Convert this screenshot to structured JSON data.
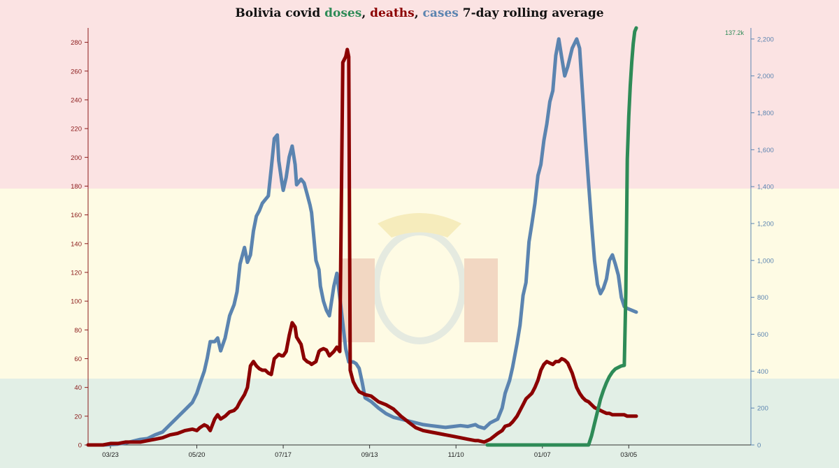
{
  "chart_data": {
    "type": "line",
    "title": {
      "prefix": "Bolivia covid ",
      "doses": "doses",
      "sep1": ", ",
      "deaths": "deaths",
      "sep2": ", ",
      "cases": "cases",
      "suffix": " 7-day rolling average"
    },
    "x_domain": [
      0,
      445
    ],
    "x_ticks": [
      {
        "label": "03/23",
        "day": 15
      },
      {
        "label": "05/20",
        "day": 73
      },
      {
        "label": "07/17",
        "day": 131
      },
      {
        "label": "09/13",
        "day": 189
      },
      {
        "label": "11/10",
        "day": 247
      },
      {
        "label": "01/07",
        "day": 305
      },
      {
        "label": "03/05",
        "day": 363
      }
    ],
    "y_left": {
      "series": "deaths",
      "range": [
        0,
        290
      ],
      "ticks": [
        0,
        20,
        40,
        60,
        80,
        100,
        120,
        140,
        160,
        180,
        200,
        220,
        240,
        260,
        280
      ]
    },
    "y_right": {
      "series": "cases",
      "range": [
        0,
        2260
      ],
      "ticks": [
        0,
        200,
        400,
        600,
        800,
        1000,
        1200,
        1400,
        1600,
        1800,
        2000,
        2200
      ],
      "tick_labels": [
        "0",
        "200",
        "400",
        "600",
        "800",
        "1,000",
        "1,200",
        "1,400",
        "1,600",
        "1,800",
        "2,000",
        "2,200"
      ]
    },
    "doses_max_label": "137.2k",
    "doses_max": 137200,
    "series": [
      {
        "name": "cases",
        "color": "#5b84b0",
        "axis": "right",
        "points": [
          [
            0,
            0
          ],
          [
            10,
            0
          ],
          [
            15,
            2
          ],
          [
            20,
            5
          ],
          [
            25,
            10
          ],
          [
            30,
            20
          ],
          [
            35,
            30
          ],
          [
            40,
            35
          ],
          [
            45,
            55
          ],
          [
            50,
            70
          ],
          [
            55,
            110
          ],
          [
            60,
            150
          ],
          [
            65,
            190
          ],
          [
            70,
            230
          ],
          [
            73,
            280
          ],
          [
            75,
            330
          ],
          [
            78,
            400
          ],
          [
            80,
            470
          ],
          [
            82,
            560
          ],
          [
            85,
            560
          ],
          [
            87,
            580
          ],
          [
            89,
            510
          ],
          [
            92,
            580
          ],
          [
            95,
            700
          ],
          [
            98,
            760
          ],
          [
            100,
            830
          ],
          [
            102,
            980
          ],
          [
            105,
            1070
          ],
          [
            107,
            990
          ],
          [
            109,
            1030
          ],
          [
            111,
            1160
          ],
          [
            113,
            1240
          ],
          [
            115,
            1270
          ],
          [
            117,
            1310
          ],
          [
            119,
            1330
          ],
          [
            121,
            1350
          ],
          [
            123,
            1500
          ],
          [
            125,
            1660
          ],
          [
            127,
            1680
          ],
          [
            128,
            1540
          ],
          [
            130,
            1430
          ],
          [
            131,
            1380
          ],
          [
            133,
            1450
          ],
          [
            135,
            1560
          ],
          [
            137,
            1620
          ],
          [
            139,
            1520
          ],
          [
            140,
            1410
          ],
          [
            143,
            1440
          ],
          [
            145,
            1420
          ],
          [
            147,
            1360
          ],
          [
            149,
            1300
          ],
          [
            150,
            1260
          ],
          [
            153,
            1000
          ],
          [
            155,
            950
          ],
          [
            156,
            860
          ],
          [
            158,
            780
          ],
          [
            160,
            730
          ],
          [
            162,
            700
          ],
          [
            165,
            860
          ],
          [
            167,
            930
          ],
          [
            169,
            800
          ],
          [
            171,
            660
          ],
          [
            173,
            520
          ],
          [
            175,
            450
          ],
          [
            178,
            450
          ],
          [
            180,
            440
          ],
          [
            182,
            415
          ],
          [
            184,
            340
          ],
          [
            186,
            255
          ],
          [
            190,
            235
          ],
          [
            195,
            200
          ],
          [
            200,
            170
          ],
          [
            205,
            150
          ],
          [
            210,
            140
          ],
          [
            215,
            130
          ],
          [
            220,
            120
          ],
          [
            225,
            110
          ],
          [
            230,
            105
          ],
          [
            235,
            100
          ],
          [
            240,
            95
          ],
          [
            245,
            100
          ],
          [
            250,
            105
          ],
          [
            255,
            100
          ],
          [
            260,
            110
          ],
          [
            262,
            100
          ],
          [
            266,
            90
          ],
          [
            270,
            120
          ],
          [
            275,
            140
          ],
          [
            278,
            200
          ],
          [
            280,
            280
          ],
          [
            283,
            350
          ],
          [
            285,
            420
          ],
          [
            288,
            550
          ],
          [
            290,
            650
          ],
          [
            292,
            810
          ],
          [
            294,
            880
          ],
          [
            296,
            1100
          ],
          [
            298,
            1200
          ],
          [
            300,
            1310
          ],
          [
            302,
            1460
          ],
          [
            304,
            1520
          ],
          [
            306,
            1650
          ],
          [
            308,
            1740
          ],
          [
            310,
            1860
          ],
          [
            312,
            1920
          ],
          [
            314,
            2110
          ],
          [
            316,
            2200
          ],
          [
            318,
            2100
          ],
          [
            320,
            2000
          ],
          [
            322,
            2050
          ],
          [
            325,
            2150
          ],
          [
            328,
            2200
          ],
          [
            330,
            2150
          ],
          [
            332,
            1900
          ],
          [
            334,
            1650
          ],
          [
            336,
            1420
          ],
          [
            338,
            1200
          ],
          [
            340,
            1000
          ],
          [
            342,
            870
          ],
          [
            344,
            820
          ],
          [
            346,
            850
          ],
          [
            348,
            900
          ],
          [
            350,
            1000
          ],
          [
            352,
            1030
          ],
          [
            354,
            980
          ],
          [
            356,
            920
          ],
          [
            358,
            800
          ],
          [
            360,
            750
          ],
          [
            362,
            740
          ],
          [
            365,
            730
          ],
          [
            368,
            720
          ]
        ]
      },
      {
        "name": "deaths",
        "color": "#8b0000",
        "axis": "left",
        "points": [
          [
            0,
            0
          ],
          [
            10,
            0
          ],
          [
            15,
            1
          ],
          [
            20,
            1
          ],
          [
            25,
            2
          ],
          [
            30,
            2
          ],
          [
            35,
            2
          ],
          [
            40,
            3
          ],
          [
            45,
            4
          ],
          [
            50,
            5
          ],
          [
            55,
            7
          ],
          [
            60,
            8
          ],
          [
            65,
            10
          ],
          [
            70,
            11
          ],
          [
            73,
            10
          ],
          [
            75,
            12
          ],
          [
            78,
            14
          ],
          [
            80,
            13
          ],
          [
            82,
            10
          ],
          [
            85,
            18
          ],
          [
            87,
            21
          ],
          [
            89,
            18
          ],
          [
            92,
            20
          ],
          [
            95,
            23
          ],
          [
            98,
            24
          ],
          [
            100,
            26
          ],
          [
            102,
            30
          ],
          [
            105,
            35
          ],
          [
            107,
            40
          ],
          [
            109,
            55
          ],
          [
            111,
            58
          ],
          [
            113,
            55
          ],
          [
            115,
            53
          ],
          [
            117,
            52
          ],
          [
            119,
            52
          ],
          [
            121,
            50
          ],
          [
            123,
            49
          ],
          [
            125,
            60
          ],
          [
            127,
            62
          ],
          [
            128,
            63
          ],
          [
            130,
            62
          ],
          [
            131,
            62
          ],
          [
            133,
            65
          ],
          [
            135,
            76
          ],
          [
            137,
            85
          ],
          [
            139,
            82
          ],
          [
            140,
            75
          ],
          [
            143,
            70
          ],
          [
            145,
            60
          ],
          [
            147,
            58
          ],
          [
            149,
            57
          ],
          [
            150,
            56
          ],
          [
            153,
            58
          ],
          [
            155,
            65
          ],
          [
            156,
            66
          ],
          [
            158,
            67
          ],
          [
            160,
            66
          ],
          [
            162,
            62
          ],
          [
            165,
            65
          ],
          [
            167,
            68
          ],
          [
            169,
            65
          ],
          [
            171,
            266
          ],
          [
            173,
            270
          ],
          [
            174,
            275
          ],
          [
            175,
            270
          ],
          [
            176,
            52
          ],
          [
            178,
            44
          ],
          [
            180,
            40
          ],
          [
            182,
            37
          ],
          [
            184,
            36
          ],
          [
            186,
            35
          ],
          [
            190,
            34
          ],
          [
            195,
            30
          ],
          [
            200,
            28
          ],
          [
            205,
            25
          ],
          [
            210,
            20
          ],
          [
            215,
            16
          ],
          [
            220,
            12
          ],
          [
            225,
            10
          ],
          [
            230,
            9
          ],
          [
            235,
            8
          ],
          [
            240,
            7
          ],
          [
            245,
            6
          ],
          [
            250,
            5
          ],
          [
            255,
            4
          ],
          [
            260,
            3
          ],
          [
            262,
            3
          ],
          [
            266,
            2
          ],
          [
            270,
            4
          ],
          [
            275,
            8
          ],
          [
            278,
            10
          ],
          [
            280,
            13
          ],
          [
            283,
            14
          ],
          [
            285,
            16
          ],
          [
            288,
            20
          ],
          [
            290,
            24
          ],
          [
            292,
            28
          ],
          [
            294,
            32
          ],
          [
            296,
            34
          ],
          [
            298,
            36
          ],
          [
            300,
            40
          ],
          [
            302,
            45
          ],
          [
            304,
            52
          ],
          [
            306,
            56
          ],
          [
            308,
            58
          ],
          [
            310,
            57
          ],
          [
            312,
            56
          ],
          [
            314,
            58
          ],
          [
            316,
            58
          ],
          [
            318,
            60
          ],
          [
            320,
            59
          ],
          [
            322,
            57
          ],
          [
            325,
            50
          ],
          [
            328,
            40
          ],
          [
            330,
            36
          ],
          [
            332,
            33
          ],
          [
            334,
            31
          ],
          [
            336,
            30
          ],
          [
            338,
            28
          ],
          [
            340,
            26
          ],
          [
            342,
            25
          ],
          [
            344,
            24
          ],
          [
            346,
            23
          ],
          [
            348,
            22
          ],
          [
            350,
            22
          ],
          [
            352,
            21
          ],
          [
            354,
            21
          ],
          [
            356,
            21
          ],
          [
            358,
            21
          ],
          [
            360,
            21
          ],
          [
            362,
            20
          ],
          [
            365,
            20
          ],
          [
            368,
            20
          ]
        ]
      },
      {
        "name": "doses",
        "color": "#2e8b57",
        "axis": "doses",
        "points": [
          [
            268,
            0
          ],
          [
            290,
            0
          ],
          [
            310,
            0
          ],
          [
            330,
            0
          ],
          [
            336,
            0
          ],
          [
            338,
            3000
          ],
          [
            340,
            7000
          ],
          [
            342,
            11000
          ],
          [
            344,
            15000
          ],
          [
            346,
            18000
          ],
          [
            348,
            20500
          ],
          [
            350,
            22500
          ],
          [
            352,
            24000
          ],
          [
            354,
            25000
          ],
          [
            356,
            25500
          ],
          [
            358,
            26000
          ],
          [
            360,
            26200
          ],
          [
            361,
            50000
          ],
          [
            362,
            94000
          ],
          [
            363,
            108000
          ],
          [
            364,
            118000
          ],
          [
            365,
            126000
          ],
          [
            366,
            132000
          ],
          [
            367,
            136000
          ],
          [
            368,
            137200
          ]
        ]
      }
    ],
    "background_flag": {
      "bands": [
        "#fbe3e3",
        "#fefbe4",
        "#e2efe6"
      ],
      "emblem_colors": [
        "#7a9fd0",
        "#c0392b",
        "#d4ac0d",
        "#27ae60"
      ]
    },
    "legend": "none",
    "grid": false
  }
}
